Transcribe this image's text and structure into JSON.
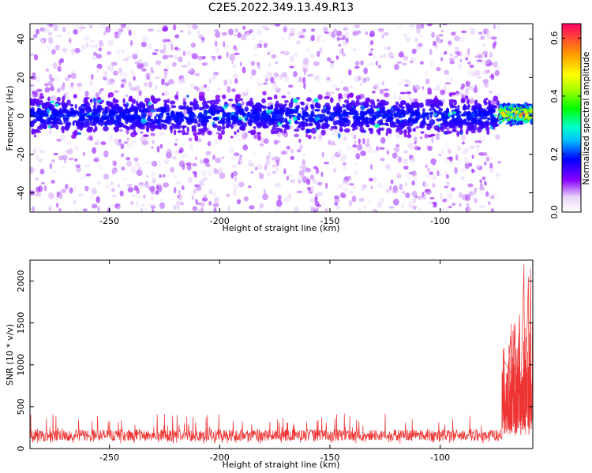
{
  "title": "C2E5.2022.349.13.49.R13",
  "chart_data": [
    {
      "type": "heatmap",
      "xlabel": "Height of straight line (km)",
      "ylabel": "Frequency (Hz)",
      "xlim": [
        -286,
        -58
      ],
      "ylim": [
        -50,
        48
      ],
      "xticks": [
        -250,
        -200,
        -150,
        -100
      ],
      "yticks": [
        -40,
        -20,
        0,
        20,
        40
      ],
      "colorbar": {
        "label": "Normalized spectral amplitude",
        "range": [
          0.0,
          0.65
        ],
        "ticks": [
          0.0,
          0.2,
          0.4,
          0.6
        ],
        "tick_labels": [
          "0.0",
          "0.2",
          "0.4",
          "0.6"
        ]
      },
      "bands": [
        {
          "x_range": [
            -286,
            -73
          ],
          "center_freq_hz": 0,
          "half_width_hz": 10,
          "typical_amplitude": 0.15,
          "peak_amplitude": 0.3
        },
        {
          "x_range": [
            -73,
            -58
          ],
          "center_freq_hz": 1,
          "half_width_hz": 4,
          "typical_amplitude": 0.35,
          "peak_amplitude": 0.62
        }
      ]
    },
    {
      "type": "line",
      "xlabel": "Height of straight line (km)",
      "ylabel": "SNR (10 * v/v)",
      "xlim": [
        -286,
        -58
      ],
      "ylim": [
        0,
        2250
      ],
      "xticks": [
        -250,
        -200,
        -150,
        -100
      ],
      "yticks": [
        0,
        500,
        1000,
        1500,
        2000
      ],
      "series": [
        {
          "color": "#ee3333",
          "segments": [
            {
              "x_range": [
                -286,
                -72
              ],
              "mean": 160,
              "noise_min": 60,
              "noise_max": 420
            },
            {
              "x_range": [
                -72,
                -58
              ],
              "mean": 700,
              "noise_min": 150,
              "noise_max": 2200
            }
          ],
          "peak_points": [
            [
              -71,
              1050
            ],
            [
              -68,
              1350
            ],
            [
              -66,
              1500
            ],
            [
              -64,
              1600
            ],
            [
              -62,
              2200
            ],
            [
              -60,
              2050
            ],
            [
              -59,
              2150
            ]
          ]
        }
      ]
    }
  ]
}
